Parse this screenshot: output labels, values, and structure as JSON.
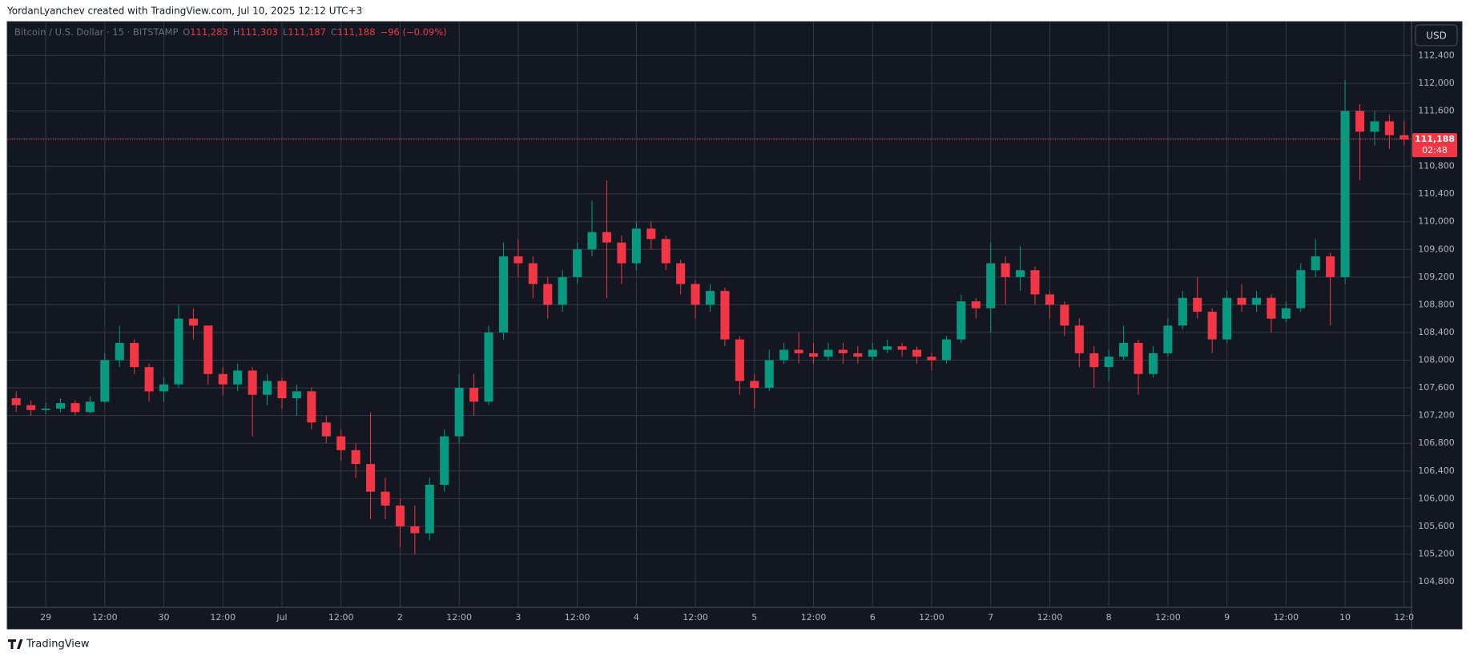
{
  "header": {
    "attribution": "YordanLyanchev created with TradingView.com, Jul 10, 2025 12:12 UTC+3"
  },
  "footer": {
    "brand": "TradingView"
  },
  "chart_data": {
    "type": "candlestick",
    "legend": {
      "symbol": "Bitcoin / U.S. Dollar · 15 · BITSTAMP",
      "items": [
        {
          "label": "O",
          "value": "111,283"
        },
        {
          "label": "H",
          "value": "111,303"
        },
        {
          "label": "L",
          "value": "111,187"
        },
        {
          "label": "C",
          "value": "111,188"
        }
      ],
      "change": "−96 (−0.09%)"
    },
    "currency": "USD",
    "last_price": {
      "value": 111188,
      "label": "111,188"
    },
    "countdown": "02:48",
    "up_color": "#089981",
    "down_color": "#f23645",
    "grid": true,
    "categories": [
      null,
      null,
      "29",
      null,
      null,
      null,
      "12:00",
      null,
      null,
      null,
      "30",
      null,
      null,
      null,
      "12:00",
      null,
      null,
      null,
      "Jul",
      null,
      null,
      null,
      "12:00",
      null,
      null,
      null,
      "2",
      null,
      null,
      null,
      "12:00",
      null,
      null,
      null,
      "3",
      null,
      null,
      null,
      "12:00",
      null,
      null,
      null,
      "4",
      null,
      null,
      null,
      "12:00",
      null,
      null,
      null,
      "5",
      null,
      null,
      null,
      "12:00",
      null,
      null,
      null,
      "6",
      null,
      null,
      null,
      "12:00",
      null,
      null,
      null,
      "7",
      null,
      null,
      null,
      "12:00",
      null,
      null,
      null,
      "8",
      null,
      null,
      null,
      "12:00",
      null,
      null,
      null,
      "9",
      null,
      null,
      null,
      "12:00",
      null,
      null,
      null,
      "10",
      null,
      null,
      null,
      "12:0"
    ],
    "open": [
      107450,
      107350,
      107280,
      107300,
      107380,
      107250,
      107400,
      108000,
      108250,
      107900,
      107550,
      107650,
      108600,
      108500,
      107800,
      107650,
      107850,
      107500,
      107700,
      107450,
      107550,
      107100,
      106900,
      106700,
      106500,
      106100,
      105900,
      105600,
      105500,
      106200,
      106900,
      107600,
      107400,
      108400,
      109500,
      109400,
      109100,
      108800,
      109200,
      109600,
      109850,
      109700,
      109400,
      109900,
      109750,
      109400,
      109100,
      108800,
      109000,
      108300,
      107700,
      107600,
      108000,
      108150,
      108100,
      108050,
      108150,
      108100,
      108050,
      108150,
      108200,
      108150,
      108050,
      108000,
      108300,
      108850,
      108750,
      109400,
      109200,
      109300,
      108950,
      108800,
      108500,
      108100,
      107900,
      108050,
      108250,
      107800,
      108100,
      108500,
      108900,
      108700,
      108300,
      108900,
      108800,
      108900,
      108600,
      108750,
      109300,
      109500,
      109200,
      111600,
      111300,
      111450,
      111250
    ],
    "high": [
      107550,
      107420,
      107380,
      107450,
      107420,
      107480,
      108100,
      108500,
      108300,
      107950,
      107750,
      108800,
      108750,
      108500,
      107900,
      107950,
      107900,
      107800,
      107750,
      107650,
      107600,
      107200,
      107000,
      106800,
      107250,
      106300,
      106000,
      105900,
      106300,
      107000,
      107800,
      107800,
      108500,
      109700,
      109750,
      109500,
      109200,
      109300,
      109700,
      110300,
      110600,
      109800,
      110000,
      110000,
      109800,
      109450,
      109150,
      109100,
      109050,
      108350,
      107800,
      108150,
      108250,
      108400,
      108250,
      108250,
      108250,
      108200,
      108250,
      108300,
      108250,
      108200,
      108100,
      108350,
      108950,
      108900,
      109700,
      109500,
      109650,
      109350,
      109000,
      108850,
      108600,
      108200,
      108150,
      108500,
      108300,
      108200,
      108600,
      109000,
      109200,
      108750,
      109000,
      109100,
      109000,
      108950,
      108850,
      109400,
      109750,
      109550,
      112050,
      111700,
      111600,
      111550,
      111450
    ],
    "low": [
      107250,
      107200,
      107220,
      107250,
      107200,
      107230,
      107380,
      107900,
      107800,
      107400,
      107400,
      107600,
      108300,
      107650,
      107500,
      107550,
      106900,
      107350,
      107300,
      107200,
      107000,
      106800,
      106550,
      106300,
      105700,
      105700,
      105300,
      105200,
      105400,
      106100,
      106800,
      107200,
      107350,
      108300,
      109200,
      108900,
      108600,
      108700,
      109100,
      109500,
      108900,
      109100,
      109300,
      109600,
      109300,
      108950,
      108600,
      108700,
      108200,
      107500,
      107300,
      107550,
      107950,
      107950,
      107950,
      108000,
      107950,
      107950,
      108000,
      108100,
      108050,
      107950,
      107850,
      107950,
      108250,
      108600,
      108400,
      108800,
      109000,
      108800,
      108600,
      108350,
      107900,
      107600,
      107700,
      108000,
      107500,
      107750,
      108050,
      108450,
      108600,
      108100,
      108250,
      108700,
      108700,
      108400,
      108550,
      108700,
      109200,
      108500,
      109100,
      110600,
      111100,
      111050,
      111100
    ],
    "close": [
      107350,
      107280,
      107300,
      107380,
      107250,
      107400,
      108000,
      108250,
      107900,
      107550,
      107650,
      108600,
      108500,
      107800,
      107650,
      107850,
      107500,
      107700,
      107450,
      107550,
      107100,
      106900,
      106700,
      106500,
      106100,
      105900,
      105600,
      105500,
      106200,
      106900,
      107600,
      107400,
      108400,
      109500,
      109400,
      109100,
      108800,
      109200,
      109600,
      109850,
      109700,
      109400,
      109900,
      109750,
      109400,
      109100,
      108800,
      109000,
      108300,
      107700,
      107600,
      108000,
      108150,
      108100,
      108050,
      108150,
      108100,
      108050,
      108150,
      108200,
      108150,
      108050,
      108000,
      108300,
      108850,
      108750,
      109400,
      109200,
      109300,
      108950,
      108800,
      108500,
      108100,
      107900,
      108050,
      108250,
      107800,
      108100,
      108500,
      108900,
      108700,
      108300,
      108900,
      108800,
      108900,
      108600,
      108750,
      109300,
      109500,
      109200,
      111600,
      111300,
      111450,
      111250,
      111188
    ],
    "ylim": [
      104430,
      112890
    ],
    "yticks": [
      {
        "value": 104800,
        "label": "104,800"
      },
      {
        "value": 105200,
        "label": "105,200"
      },
      {
        "value": 105600,
        "label": "105,600"
      },
      {
        "value": 106000,
        "label": "106,000"
      },
      {
        "value": 106400,
        "label": "106,400"
      },
      {
        "value": 106800,
        "label": "106,800"
      },
      {
        "value": 107200,
        "label": "107,200"
      },
      {
        "value": 107600,
        "label": "107,600"
      },
      {
        "value": 108000,
        "label": "108,000"
      },
      {
        "value": 108400,
        "label": "108,400"
      },
      {
        "value": 108800,
        "label": "108,800"
      },
      {
        "value": 109200,
        "label": "109,200"
      },
      {
        "value": 109600,
        "label": "109,600"
      },
      {
        "value": 110000,
        "label": "110,000"
      },
      {
        "value": 110400,
        "label": "110,400"
      },
      {
        "value": 110800,
        "label": "110,800"
      },
      {
        "value": 111200,
        "label": "111,200"
      },
      {
        "value": 111600,
        "label": "111,600"
      },
      {
        "value": 112000,
        "label": "112,000"
      },
      {
        "value": 112400,
        "label": "112,400"
      }
    ]
  }
}
